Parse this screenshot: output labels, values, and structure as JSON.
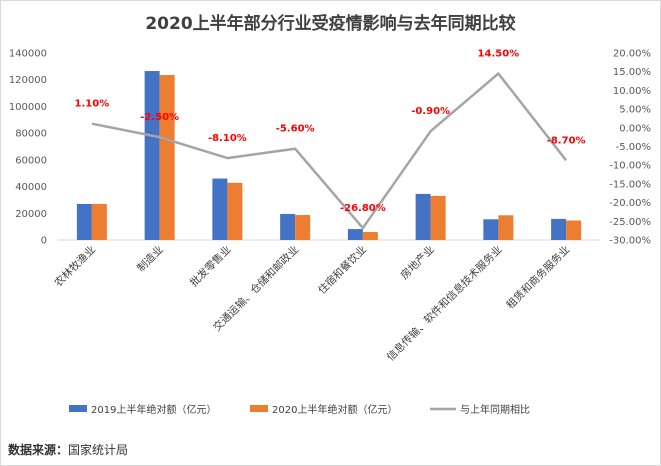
{
  "title": "2020上半年部分行业受疫情影响与去年同期比较",
  "source": {
    "label": "数据来源：",
    "value": "国家统计局"
  },
  "chart_data": {
    "type": "bar",
    "title": "2020上半年部分行业受疫情影响与去年同期比较",
    "categories": [
      "农林牧渔业",
      "制造业",
      "批发零售业",
      "交通运输、仓储和邮政业",
      "住宿和餐饮业",
      "房地产业",
      "信息传输、软件和信息技术服务业",
      "租赁和商务服务业"
    ],
    "series": [
      {
        "name": "2019上半年绝对额（亿元）",
        "type": "bar",
        "axis": "left",
        "color": "#4472c4",
        "values": [
          27000,
          126500,
          46000,
          19500,
          8200,
          34500,
          15500,
          15800
        ]
      },
      {
        "name": "2020上半年绝对额（亿元）",
        "type": "bar",
        "axis": "left",
        "color": "#ed7d31",
        "values": [
          27000,
          123500,
          42800,
          18700,
          6000,
          33000,
          18500,
          14600
        ]
      },
      {
        "name": "与上年同期相比",
        "type": "line",
        "axis": "right",
        "color": "#a5a5a5",
        "values": [
          1.1,
          -2.5,
          -8.1,
          -5.6,
          -26.8,
          -0.9,
          14.5,
          -8.7
        ],
        "labels": [
          "1.10%",
          "-2.50%",
          "-8.10%",
          "-5.60%",
          "-26.80%",
          "-0.90%",
          "14.50%",
          "-8.70%"
        ]
      }
    ],
    "ylim": [
      0,
      140000
    ],
    "y_ticks": [
      "0",
      "20000",
      "40000",
      "60000",
      "80000",
      "100000",
      "120000",
      "140000"
    ],
    "y2lim": [
      -30,
      20
    ],
    "y2_ticks": [
      "-30.00%",
      "-25.00%",
      "-20.00%",
      "-15.00%",
      "-10.00%",
      "-5.00%",
      "0.00%",
      "5.00%",
      "10.00%",
      "15.00%",
      "20.00%"
    ],
    "grid": false,
    "legend": "bottom"
  }
}
